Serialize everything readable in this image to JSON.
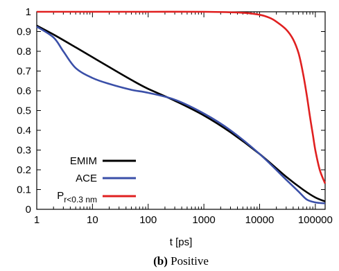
{
  "chart_data": {
    "type": "line",
    "xlabel": "t [ps]",
    "ylabel": "",
    "xscale": "log",
    "xlim": [
      1,
      150000
    ],
    "ylim": [
      0,
      1
    ],
    "xticks": [
      1,
      10,
      100,
      1000,
      10000,
      100000
    ],
    "xtick_labels": [
      "1",
      "10",
      "100",
      "1000",
      "10000",
      "100000"
    ],
    "yticks": [
      0,
      0.1,
      0.2,
      0.3,
      0.4,
      0.5,
      0.6,
      0.7,
      0.8,
      0.9,
      1
    ],
    "ytick_labels": [
      "0",
      "0.1",
      "0.2",
      "0.3",
      "0.4",
      "0.5",
      "0.6",
      "0.7",
      "0.8",
      "0.9",
      "1"
    ],
    "grid": false,
    "legend_position": "bottom-left",
    "series": [
      {
        "name": "EMIM",
        "color": "#000000",
        "x": [
          1,
          2,
          5,
          10,
          20,
          50,
          100,
          300,
          1000,
          3000,
          10000,
          30000,
          60000,
          100000,
          150000
        ],
        "y": [
          0.93,
          0.885,
          0.82,
          0.77,
          0.72,
          0.655,
          0.61,
          0.55,
          0.475,
          0.39,
          0.28,
          0.165,
          0.1,
          0.06,
          0.04
        ]
      },
      {
        "name": "ACE",
        "color": "#3a4fa8",
        "x": [
          1,
          2,
          3,
          5,
          10,
          20,
          50,
          100,
          300,
          1000,
          3000,
          10000,
          30000,
          50000,
          70000,
          100000,
          150000
        ],
        "y": [
          0.925,
          0.87,
          0.8,
          0.715,
          0.665,
          0.635,
          0.605,
          0.59,
          0.555,
          0.485,
          0.4,
          0.28,
          0.15,
          0.09,
          0.05,
          0.035,
          0.03
        ]
      },
      {
        "name": "P r<0.3 nm",
        "color": "#e02020",
        "x": [
          1,
          10,
          100,
          1000,
          5000,
          10000,
          15000,
          20000,
          30000,
          40000,
          50000,
          60000,
          70000,
          80000,
          90000,
          100000,
          120000,
          150000
        ],
        "y": [
          1.0,
          1.0,
          1.0,
          1.0,
          0.995,
          0.985,
          0.97,
          0.95,
          0.91,
          0.86,
          0.79,
          0.69,
          0.58,
          0.47,
          0.38,
          0.3,
          0.2,
          0.13
        ]
      }
    ],
    "legend_labels": {
      "emim": "EMIM",
      "ace": "ACE",
      "p_main": "P",
      "p_sub": "r<0.3 nm"
    }
  },
  "caption": {
    "bold": "(b)",
    "rest": " Positive"
  }
}
